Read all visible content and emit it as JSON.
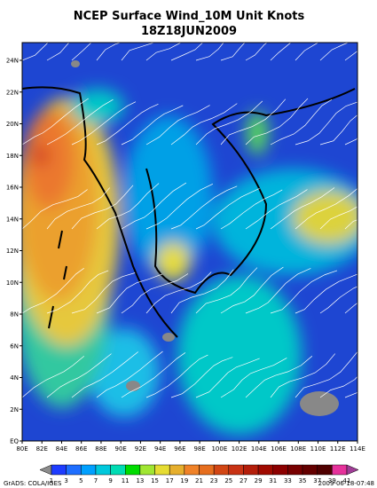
{
  "header": {
    "title": "NCEP Surface Wind_10M Unit Knots",
    "subtitle": "18Z18JUN2009"
  },
  "map": {
    "x_labels": [
      "80E",
      "82E",
      "84E",
      "86E",
      "88E",
      "90E",
      "92E",
      "94E",
      "96E",
      "98E",
      "100E",
      "102E",
      "104E",
      "106E",
      "108E",
      "110E",
      "112E",
      "114E"
    ],
    "y_labels": [
      "EQ",
      "2N",
      "4N",
      "6N",
      "8N",
      "10N",
      "12N",
      "14N",
      "16N",
      "18N",
      "20N",
      "22N",
      "24N"
    ]
  },
  "colorbar": {
    "labels": [
      1,
      3,
      5,
      7,
      9,
      11,
      13,
      15,
      17,
      19,
      21,
      23,
      25,
      27,
      29,
      31,
      33,
      35,
      37,
      39,
      41
    ]
  },
  "footer": {
    "left": "GrADS: COLA/IGES",
    "right": "2009-06-18-07:48"
  }
}
